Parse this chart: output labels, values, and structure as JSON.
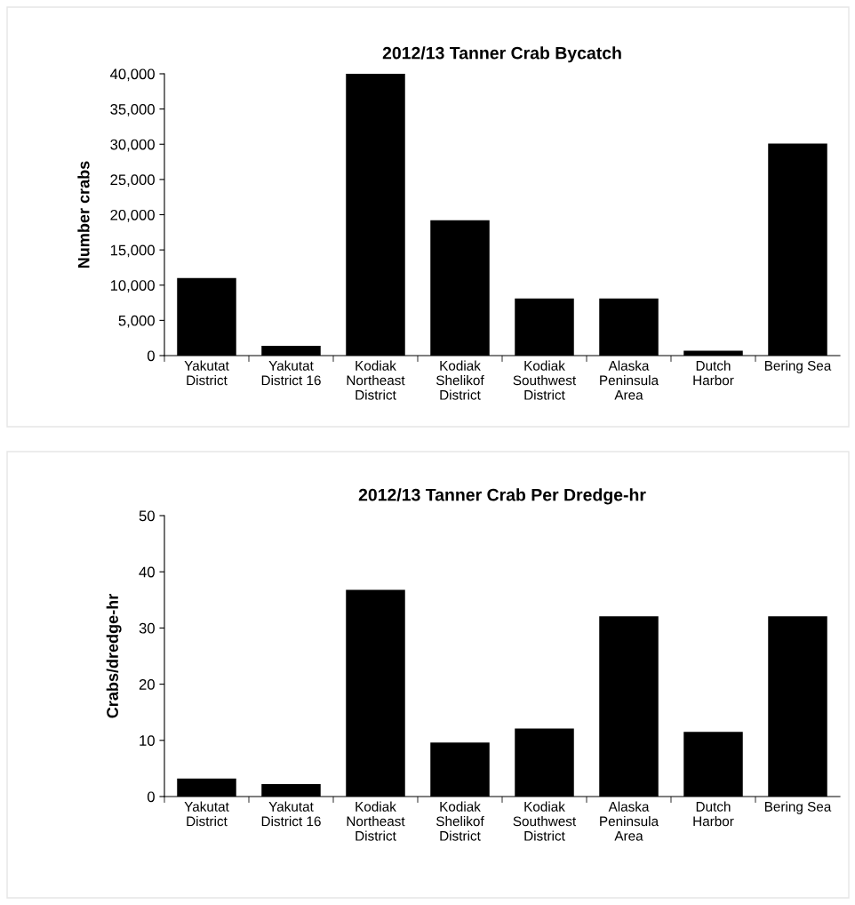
{
  "chart_data": [
    {
      "type": "bar",
      "title": "2012/13 Tanner Crab Bycatch",
      "ylabel": "Number crabs",
      "categories": [
        "Yakutat\nDistrict",
        "Yakutat\nDistrict 16",
        "Kodiak\nNortheast\nDistrict",
        "Kodiak\nShelikof\nDistrict",
        "Kodiak\nSouthwest\nDistrict",
        "Alaska\nPeninsula\nArea",
        "Dutch\nHarbor",
        "Bering Sea"
      ],
      "values": [
        11000,
        1400,
        40000,
        19200,
        8100,
        8100,
        700,
        30100
      ],
      "color": "#000000",
      "ylim": [
        0,
        40000
      ],
      "yticks": [
        0,
        {
          "value": 5000,
          "label": "5,000"
        },
        {
          "value": 10000,
          "label": "10,000"
        },
        {
          "value": 15000,
          "label": "15,000"
        },
        {
          "value": 20000,
          "label": "20,000"
        },
        {
          "value": 25000,
          "label": "25,000"
        },
        {
          "value": 30000,
          "label": "30,000"
        },
        {
          "value": 35000,
          "label": "35,000"
        },
        {
          "value": 40000,
          "label": "40,000"
        }
      ],
      "grid": false,
      "legend": false
    },
    {
      "type": "bar",
      "title": "2012/13 Tanner Crab Per Dredge-hr",
      "ylabel": "Crabs/dredge-hr",
      "categories": [
        "Yakutat\nDistrict",
        "Yakutat\nDistrict 16",
        "Kodiak\nNortheast\nDistrict",
        "Kodiak\nShelikof\nDistrict",
        "Kodiak\nSouthwest\nDistrict",
        "Alaska\nPeninsula\nArea",
        "Dutch\nHarbor",
        "Bering Sea"
      ],
      "values": [
        3.2,
        2.2,
        36.8,
        9.6,
        12.1,
        32.1,
        11.5,
        32.1
      ],
      "color": "#000000",
      "ylim": [
        0,
        50
      ],
      "yticks": [
        0,
        10,
        20,
        30,
        40,
        50
      ],
      "grid": false,
      "legend": false
    }
  ]
}
